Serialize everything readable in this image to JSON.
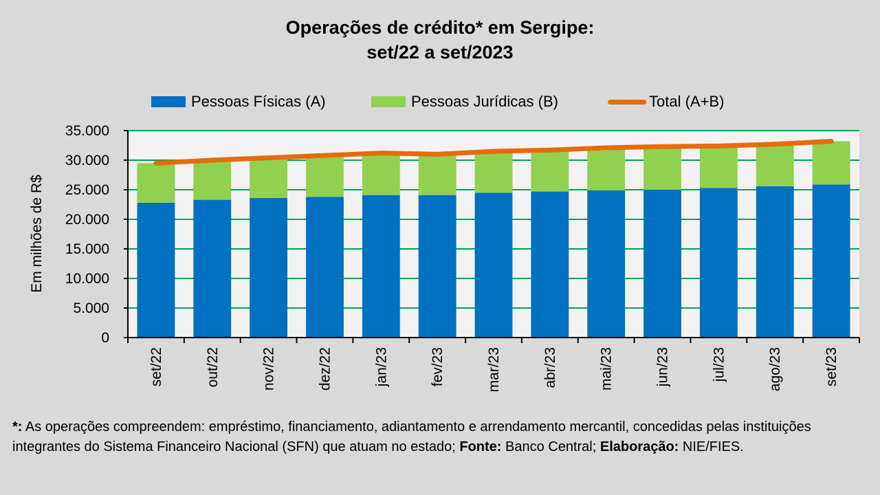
{
  "title_line1": "Operações de crédito* em Sergipe:",
  "title_line2": "set/22 a set/2023",
  "colors": {
    "pf": "#0070c0",
    "pj": "#92d050",
    "total": "#e46c0a",
    "grid": "#00a651",
    "plot_bg": "#f2f2f2"
  },
  "chart_data": {
    "type": "bar",
    "stacked": true,
    "categories": [
      "set/22",
      "out/22",
      "nov/22",
      "dez/22",
      "jan/23",
      "fev/23",
      "mar/23",
      "abr/23",
      "mai/23",
      "jun/23",
      "jul/23",
      "ago/23",
      "set/23"
    ],
    "series": [
      {
        "name": "Pessoas Físicas (A)",
        "type": "bar",
        "values": [
          22800,
          23300,
          23600,
          23800,
          24100,
          24100,
          24500,
          24700,
          24900,
          25000,
          25300,
          25600,
          25900
        ]
      },
      {
        "name": "Pessoas Jurídicas (B)",
        "type": "bar",
        "values": [
          6700,
          6700,
          6800,
          7000,
          7100,
          6900,
          7000,
          7000,
          7200,
          7300,
          7100,
          7100,
          7300
        ]
      },
      {
        "name": "Total (A+B)",
        "type": "line",
        "values": [
          29500,
          30000,
          30400,
          30800,
          31200,
          31000,
          31500,
          31700,
          32100,
          32300,
          32400,
          32700,
          33200
        ]
      }
    ],
    "ylabel": "Em milhões de R$",
    "xlabel": "",
    "ylim": [
      0,
      35000
    ],
    "ytick_values": [
      0,
      5000,
      10000,
      15000,
      20000,
      25000,
      30000,
      35000
    ],
    "ytick_labels": [
      "0",
      "5.000",
      "10.000",
      "15.000",
      "20.000",
      "25.000",
      "30.000",
      "35.000"
    ],
    "grid": true,
    "legend": "top"
  },
  "footnote": {
    "star": "*:",
    "text1": " As operações compreendem: empréstimo, financiamento, adiantamento e arrendamento mercantil, concedidas pelas instituições integrantes do Sistema Financeiro Nacional (SFN) que atuam no estado; ",
    "fonte_label": "Fonte:",
    "fonte_value": " Banco Central; ",
    "elab_label": "Elaboração:",
    "elab_value": "  NIE/FIES."
  }
}
